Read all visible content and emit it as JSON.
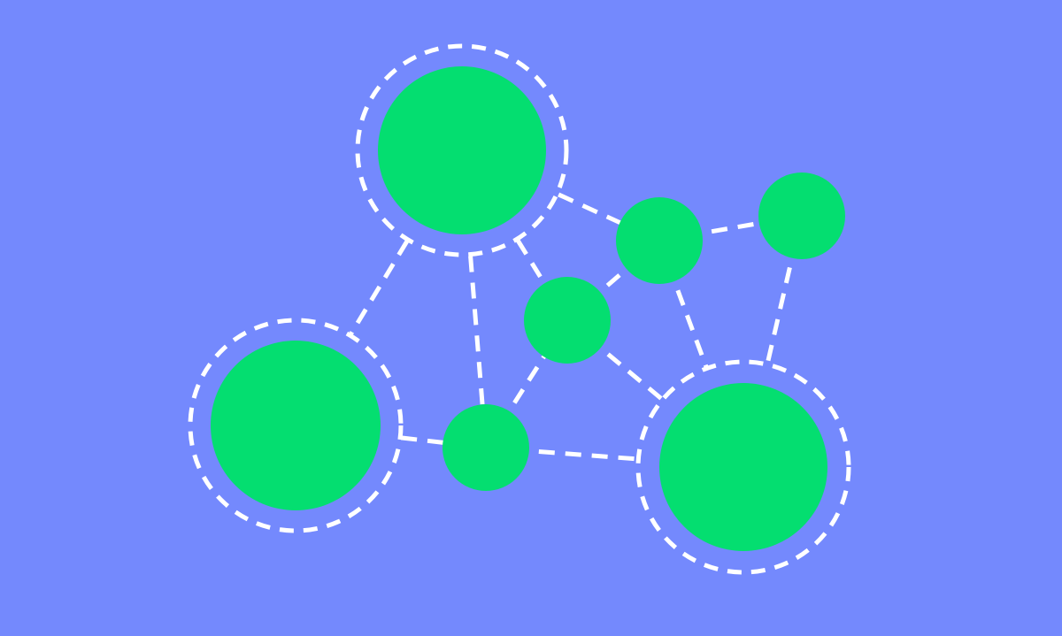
{
  "colors": {
    "background": "#7489fd",
    "node_fill": "#04de70",
    "line": "#ffffff"
  },
  "graph": {
    "nodes": [
      {
        "id": "hub-top",
        "kind": "hub",
        "icon": "network-hub-node"
      },
      {
        "id": "hub-left",
        "kind": "hub",
        "icon": "network-hub-node"
      },
      {
        "id": "hub-bottom-right",
        "kind": "hub",
        "icon": "network-hub-node"
      },
      {
        "id": "node-center",
        "kind": "small",
        "icon": "network-node"
      },
      {
        "id": "node-lower",
        "kind": "small",
        "icon": "network-node"
      },
      {
        "id": "node-upper-right",
        "kind": "small",
        "icon": "network-node"
      },
      {
        "id": "node-far-right",
        "kind": "small",
        "icon": "network-node"
      }
    ],
    "edges": [
      {
        "from": "hub-top",
        "to": "hub-left"
      },
      {
        "from": "hub-top",
        "to": "node-lower"
      },
      {
        "from": "hub-top",
        "to": "node-center"
      },
      {
        "from": "hub-top",
        "to": "node-upper-right"
      },
      {
        "from": "hub-left",
        "to": "node-lower"
      },
      {
        "from": "node-lower",
        "to": "node-center"
      },
      {
        "from": "node-lower",
        "to": "hub-bottom-right"
      },
      {
        "from": "node-center",
        "to": "node-upper-right"
      },
      {
        "from": "node-center",
        "to": "hub-bottom-right"
      },
      {
        "from": "node-upper-right",
        "to": "node-far-right"
      },
      {
        "from": "node-upper-right",
        "to": "hub-bottom-right"
      },
      {
        "from": "node-far-right",
        "to": "hub-bottom-right"
      }
    ]
  }
}
